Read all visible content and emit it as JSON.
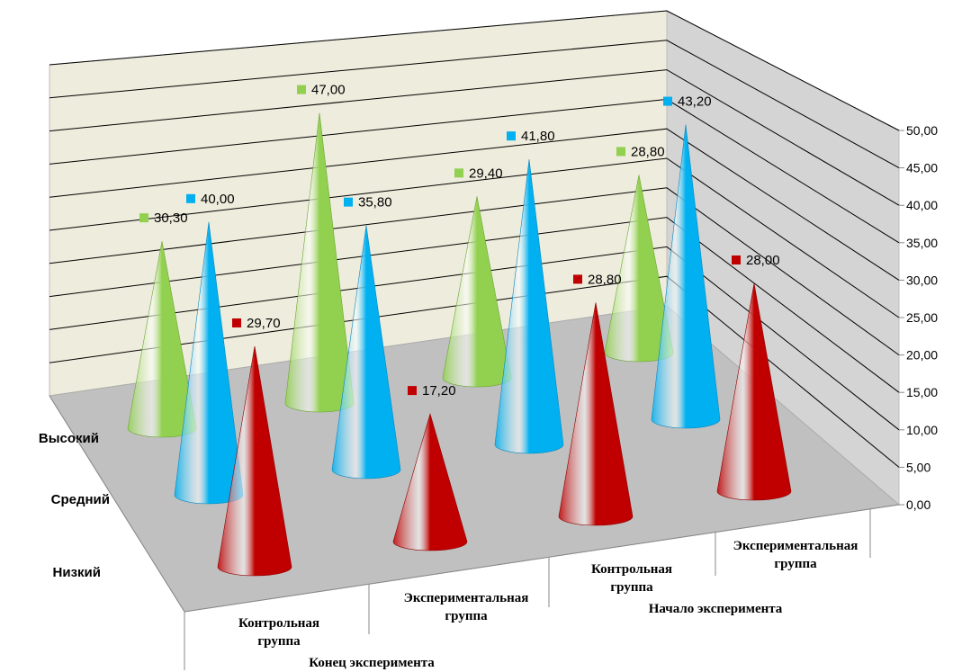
{
  "chart_data": {
    "type": "bar",
    "style": "3d-cone",
    "categories": [
      "Контрольная группа Конец эксперимента",
      "Экспериментальная группа Конец эксперимента",
      "Контрольная группа Начало эксперимента",
      "Экспериментальная группа Начало эксперимента"
    ],
    "category_labels": [
      {
        "line1": "Контрольная",
        "line2": "группа"
      },
      {
        "line1": "Экспериментальная",
        "line2": "группа"
      },
      {
        "line1": "Контрольная",
        "line2": "группа"
      },
      {
        "line1": "Экспериментальная",
        "line2": "группа"
      }
    ],
    "group_labels": [
      "Конец эксперимента",
      "Начало эксперимента"
    ],
    "series": [
      {
        "name": "Высокий",
        "color": "#92d050",
        "values": [
          30.3,
          47.0,
          29.4,
          28.8
        ]
      },
      {
        "name": "Средний",
        "color": "#00b0f0",
        "values": [
          40.0,
          35.8,
          41.8,
          43.2
        ]
      },
      {
        "name": "Низкий",
        "color": "#c00000",
        "values": [
          29.7,
          17.2,
          28.8,
          28.0
        ]
      }
    ],
    "value_labels": [
      [
        "30,30",
        "47,00",
        "29,40",
        "28,80"
      ],
      [
        "40,00",
        "35,80",
        "41,80",
        "43,20"
      ],
      [
        "29,70",
        "17,20",
        "28,80",
        "28,00"
      ]
    ],
    "y_ticks": [
      "0,00",
      "5,00",
      "10,00",
      "15,00",
      "20,00",
      "25,00",
      "30,00",
      "35,00",
      "40,00",
      "45,00",
      "50,00"
    ],
    "ylim": [
      0,
      50
    ],
    "grid": true,
    "legend": "none",
    "title": "",
    "xlabel": "",
    "ylabel": ""
  }
}
